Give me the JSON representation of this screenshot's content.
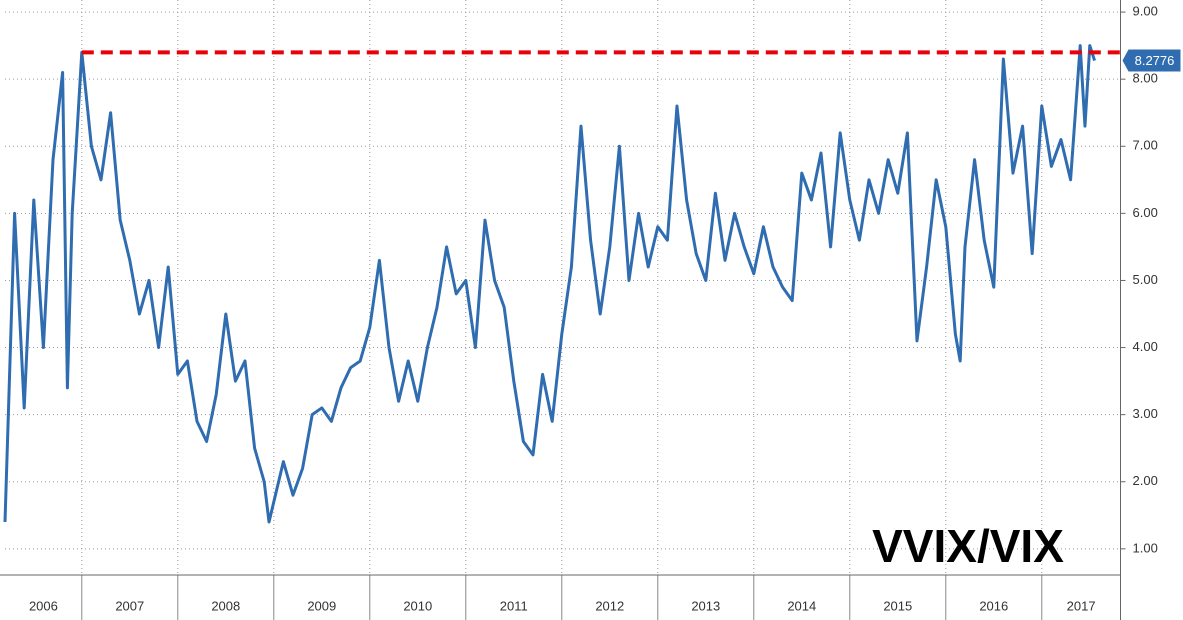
{
  "chart_data": {
    "type": "line",
    "title": "VVIX/VIX",
    "grid": true,
    "xlim": [
      2006.2,
      2017.82
    ],
    "xticks": [
      2006,
      2007,
      2008,
      2009,
      2010,
      2011,
      2012,
      2013,
      2014,
      2015,
      2016,
      2017
    ],
    "ylim": [
      0.61,
      9.18
    ],
    "yticks": [
      {
        "value": 1,
        "label": "1.00"
      },
      {
        "value": 2,
        "label": "2.00"
      },
      {
        "value": 3,
        "label": "3.00"
      },
      {
        "value": 4,
        "label": "4.00"
      },
      {
        "value": 5,
        "label": "5.00"
      },
      {
        "value": 6,
        "label": "6.00"
      },
      {
        "value": 7,
        "label": "7.00"
      },
      {
        "value": 8,
        "label": "8.00"
      },
      {
        "value": 9,
        "label": "9.00"
      }
    ],
    "reference_line": {
      "value": 8.4,
      "x_start": 2007.0,
      "color": "#e8000b"
    },
    "series": [
      {
        "name": "VVIX/VIX",
        "color": "#2f6db0",
        "x": [
          2006.2,
          2006.3,
          2006.4,
          2006.5,
          2006.6,
          2006.7,
          2006.8,
          2006.85,
          2006.9,
          2007.0,
          2007.1,
          2007.2,
          2007.3,
          2007.4,
          2007.5,
          2007.6,
          2007.7,
          2007.8,
          2007.9,
          2008.0,
          2008.1,
          2008.2,
          2008.3,
          2008.4,
          2008.5,
          2008.6,
          2008.7,
          2008.8,
          2008.9,
          2008.95,
          2009.1,
          2009.2,
          2009.3,
          2009.4,
          2009.5,
          2009.6,
          2009.7,
          2009.8,
          2009.9,
          2010.0,
          2010.1,
          2010.2,
          2010.3,
          2010.4,
          2010.5,
          2010.6,
          2010.7,
          2010.8,
          2010.9,
          2011.0,
          2011.1,
          2011.2,
          2011.3,
          2011.4,
          2011.5,
          2011.6,
          2011.7,
          2011.8,
          2011.9,
          2012.0,
          2012.1,
          2012.2,
          2012.3,
          2012.4,
          2012.5,
          2012.6,
          2012.7,
          2012.8,
          2012.9,
          2013.0,
          2013.1,
          2013.2,
          2013.3,
          2013.4,
          2013.5,
          2013.6,
          2013.7,
          2013.8,
          2013.9,
          2014.0,
          2014.1,
          2014.2,
          2014.3,
          2014.4,
          2014.5,
          2014.6,
          2014.7,
          2014.8,
          2014.9,
          2015.0,
          2015.1,
          2015.2,
          2015.3,
          2015.4,
          2015.5,
          2015.6,
          2015.7,
          2015.8,
          2015.9,
          2016.0,
          2016.1,
          2016.15,
          2016.2,
          2016.3,
          2016.4,
          2016.5,
          2016.6,
          2016.7,
          2016.8,
          2016.9,
          2017.0,
          2017.1,
          2017.2,
          2017.3,
          2017.4,
          2017.45,
          2017.5,
          2017.55
        ],
        "values": [
          1.4,
          6.0,
          3.1,
          6.2,
          4.0,
          6.8,
          8.1,
          3.4,
          6.0,
          8.4,
          7.0,
          6.5,
          7.5,
          5.9,
          5.3,
          4.5,
          5.0,
          4.0,
          5.2,
          3.6,
          3.8,
          2.9,
          2.6,
          3.3,
          4.5,
          3.5,
          3.8,
          2.5,
          2.0,
          1.4,
          2.3,
          1.8,
          2.2,
          3.0,
          3.1,
          2.9,
          3.4,
          3.7,
          3.8,
          4.3,
          5.3,
          4.0,
          3.2,
          3.8,
          3.2,
          4.0,
          4.6,
          5.5,
          4.8,
          5.0,
          4.0,
          5.9,
          5.0,
          4.6,
          3.5,
          2.6,
          2.4,
          3.6,
          2.9,
          4.2,
          5.2,
          7.3,
          5.6,
          4.5,
          5.5,
          7.0,
          5.0,
          6.0,
          5.2,
          5.8,
          5.6,
          7.6,
          6.2,
          5.4,
          5.0,
          6.3,
          5.3,
          6.0,
          5.5,
          5.1,
          5.8,
          5.2,
          4.9,
          4.7,
          6.6,
          6.2,
          6.9,
          5.5,
          7.2,
          6.2,
          5.6,
          6.5,
          6.0,
          6.8,
          6.3,
          7.2,
          4.1,
          5.2,
          6.5,
          5.8,
          4.2,
          3.8,
          5.5,
          6.8,
          5.6,
          4.9,
          8.3,
          6.6,
          7.3,
          5.4,
          7.6,
          6.7,
          7.1,
          6.5,
          8.5,
          7.3,
          8.5,
          8.2776
        ]
      }
    ]
  }
}
